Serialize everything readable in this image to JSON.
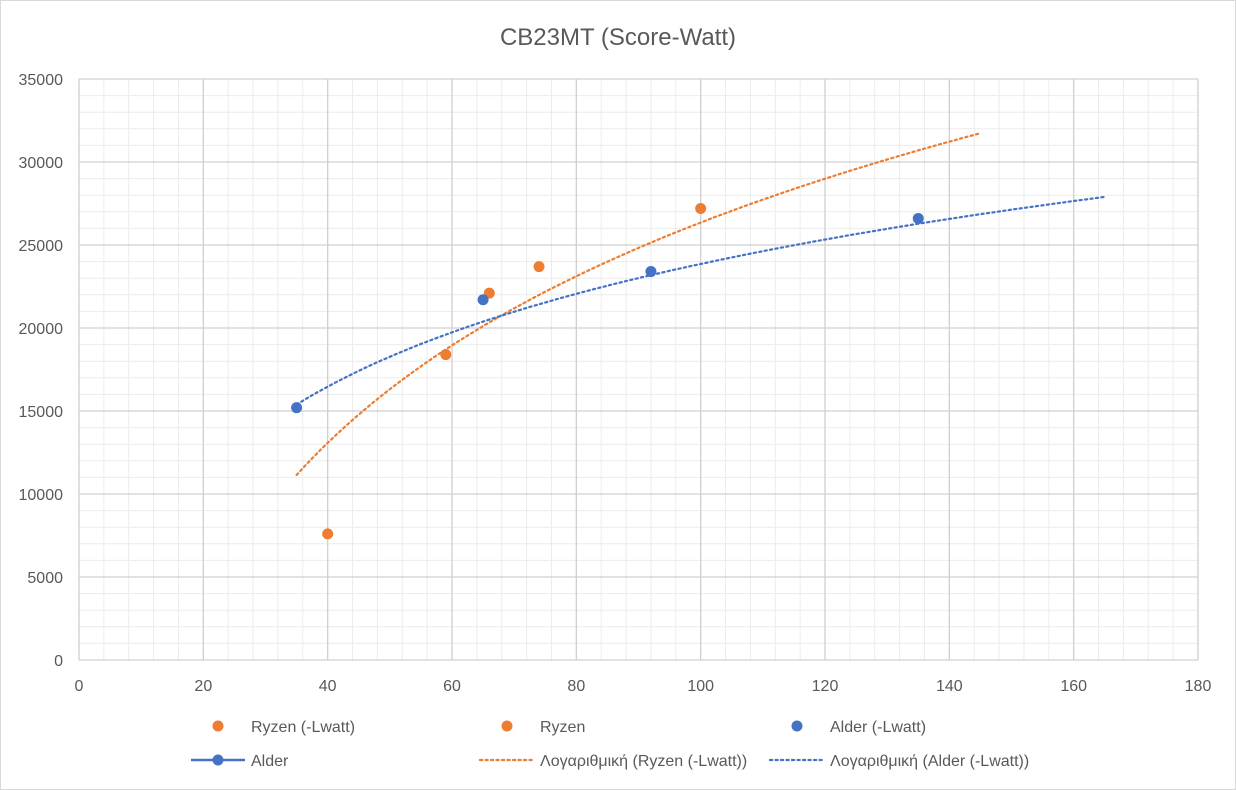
{
  "chart_data": {
    "type": "scatter",
    "title": "CB23MT (Score-Watt)",
    "xlabel": "",
    "ylabel": "",
    "xlim": [
      0,
      180
    ],
    "ylim": [
      0,
      35000
    ],
    "xticks": [
      0,
      20,
      40,
      60,
      80,
      100,
      120,
      140,
      160,
      180
    ],
    "yticks": [
      0,
      5000,
      10000,
      15000,
      20000,
      25000,
      30000,
      35000
    ],
    "xtick_labels": [
      "0",
      "20",
      "40",
      "60",
      "80",
      "100",
      "120",
      "140",
      "160",
      "180"
    ],
    "ytick_labels": [
      "0",
      "5000",
      "10000",
      "15000",
      "20000",
      "25000",
      "30000",
      "35000"
    ],
    "grid": true,
    "legend_position": "bottom",
    "series": [
      {
        "name": "Ryzen (-Lwatt)",
        "kind": "marker",
        "color": "#ED7D31",
        "points": [
          [
            66,
            22100
          ],
          [
            74,
            23700
          ],
          [
            100,
            27200
          ]
        ]
      },
      {
        "name": "Ryzen",
        "kind": "marker",
        "color": "#ED7D31",
        "points": [
          [
            40,
            7600
          ],
          [
            59,
            18400
          ]
        ]
      },
      {
        "name": "Alder (-Lwatt)",
        "kind": "marker",
        "color": "#4472C4",
        "points": [
          [
            35,
            15200
          ],
          [
            65,
            21700
          ],
          [
            92,
            23400
          ],
          [
            135,
            26600
          ]
        ]
      },
      {
        "name": "Alder",
        "kind": "line-marker",
        "color": "#4472C4",
        "points": []
      },
      {
        "name": "Λογαριθμική (Ryzen (-Lwatt))",
        "kind": "trend",
        "color": "#ED7D31",
        "trend": {
          "a": -40355,
          "b": 14485,
          "x_start": 35,
          "x_end": 145
        }
      },
      {
        "name": "Λογαριθμική (Alder (-Lwatt))",
        "kind": "trend",
        "color": "#4472C4",
        "trend": {
          "a": -13287,
          "b": 8066,
          "x_start": 35,
          "x_end": 165
        }
      }
    ]
  }
}
